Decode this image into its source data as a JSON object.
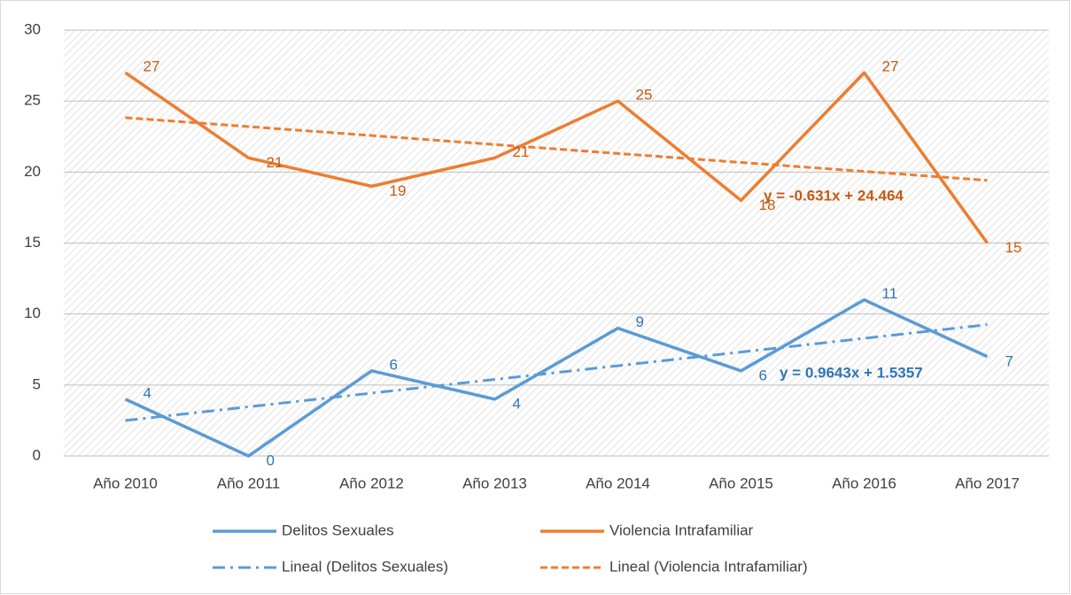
{
  "chart_data": {
    "type": "line",
    "categories": [
      "Año 2010",
      "Año 2011",
      "Año 2012",
      "Año 2013",
      "Año 2014",
      "Año 2015",
      "Año 2016",
      "Año 2017"
    ],
    "series": [
      {
        "name": "Delitos Sexuales",
        "color": "#5b9bd5",
        "label_color": "#2e75b6",
        "values": [
          4,
          0,
          6,
          4,
          9,
          6,
          11,
          7
        ],
        "trendline": {
          "name": "Lineal (Delitos Sexuales)",
          "slope": 0.9643,
          "intercept": 1.5357,
          "label": "y = 0.9643x + 1.5357"
        }
      },
      {
        "name": "Violencia Intrafamiliar",
        "color": "#ed7d31",
        "label_color": "#c55a11",
        "values": [
          27,
          21,
          19,
          21,
          25,
          18,
          27,
          15
        ],
        "trendline": {
          "name": "Lineal (Violencia Intrafamiliar)",
          "slope": -0.631,
          "intercept": 24.464,
          "label": "y = -0.631x + 24.464"
        }
      }
    ],
    "ylim": [
      0,
      30
    ],
    "yticks": [
      0,
      5,
      10,
      15,
      20,
      25,
      30
    ],
    "grid": true,
    "legend": "bottom"
  }
}
